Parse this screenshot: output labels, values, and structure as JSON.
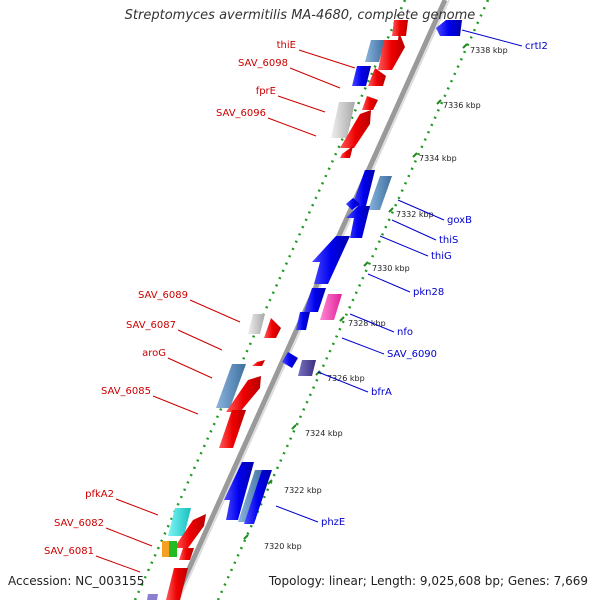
{
  "title": "Streptomyces avermitilis MA-4680, complete genome",
  "footer": {
    "accession": "Accession: NC_003155",
    "summary": "Topology: linear; Length: 9,025,608 bp; Genes: 7,669"
  },
  "colors": {
    "forward_label": "#cc0000",
    "reverse_label": "#0000cc",
    "strand_line": "#999999",
    "axis_dots": "#229922"
  },
  "scale_ticks": [
    "7338 kbp",
    "7336 kbp",
    "7334 kbp",
    "7332 kbp",
    "7330 kbp",
    "7328 kbp",
    "7326 kbp",
    "7324 kbp",
    "7322 kbp",
    "7320 kbp"
  ],
  "forward_genes": [
    "thiE",
    "SAV_6098",
    "fprE",
    "SAV_6096",
    "SAV_6089",
    "SAV_6087",
    "aroG",
    "SAV_6085",
    "pfkA2",
    "SAV_6082",
    "SAV_6081"
  ],
  "reverse_genes": [
    "crtI2",
    "goxB",
    "thiS",
    "thiG",
    "pkn28",
    "nfo",
    "SAV_6090",
    "bfrA",
    "phzE"
  ]
}
